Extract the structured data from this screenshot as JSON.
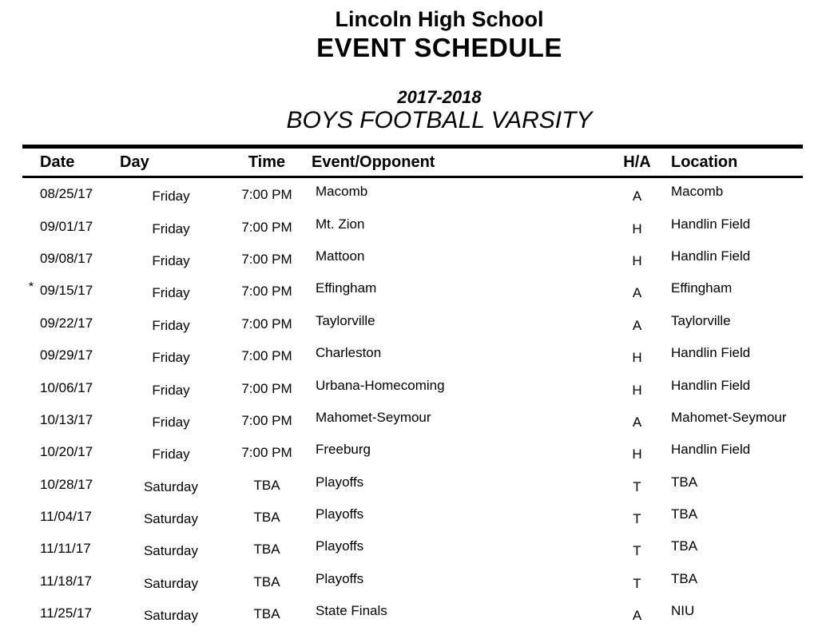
{
  "header": {
    "school": "Lincoln High School",
    "title": "EVENT SCHEDULE",
    "season": "2017-2018",
    "team": "BOYS FOOTBALL VARSITY"
  },
  "table": {
    "columns": {
      "date": "Date",
      "day": "Day",
      "time": "Time",
      "event": "Event/Opponent",
      "ha": "H/A",
      "location": "Location"
    },
    "rows": [
      {
        "flag": "",
        "date": "08/25/17",
        "day": "Friday",
        "time": "7:00 PM",
        "event": "Macomb",
        "ha": "A",
        "location": "Macomb"
      },
      {
        "flag": "",
        "date": "09/01/17",
        "day": "Friday",
        "time": "7:00 PM",
        "event": "Mt. Zion",
        "ha": "H",
        "location": "Handlin Field"
      },
      {
        "flag": "",
        "date": "09/08/17",
        "day": "Friday",
        "time": "7:00 PM",
        "event": "Mattoon",
        "ha": "H",
        "location": "Handlin Field"
      },
      {
        "flag": "*",
        "date": "09/15/17",
        "day": "Friday",
        "time": "7:00 PM",
        "event": "Effingham",
        "ha": "A",
        "location": "Effingham"
      },
      {
        "flag": "",
        "date": "09/22/17",
        "day": "Friday",
        "time": "7:00 PM",
        "event": "Taylorville",
        "ha": "A",
        "location": "Taylorville"
      },
      {
        "flag": "",
        "date": "09/29/17",
        "day": "Friday",
        "time": "7:00 PM",
        "event": "Charleston",
        "ha": "H",
        "location": "Handlin Field"
      },
      {
        "flag": "",
        "date": "10/06/17",
        "day": "Friday",
        "time": "7:00 PM",
        "event": "Urbana-Homecoming",
        "ha": "H",
        "location": "Handlin Field"
      },
      {
        "flag": "",
        "date": "10/13/17",
        "day": "Friday",
        "time": "7:00 PM",
        "event": "Mahomet-Seymour",
        "ha": "A",
        "location": "Mahomet-Seymour"
      },
      {
        "flag": "",
        "date": "10/20/17",
        "day": "Friday",
        "time": "7:00 PM",
        "event": "Freeburg",
        "ha": "H",
        "location": "Handlin Field"
      },
      {
        "flag": "",
        "date": "10/28/17",
        "day": "Saturday",
        "time": "TBA",
        "event": "Playoffs",
        "ha": "T",
        "location": "TBA"
      },
      {
        "flag": "",
        "date": "11/04/17",
        "day": "Saturday",
        "time": "TBA",
        "event": "Playoffs",
        "ha": "T",
        "location": "TBA"
      },
      {
        "flag": "",
        "date": "11/11/17",
        "day": "Saturday",
        "time": "TBA",
        "event": "Playoffs",
        "ha": "T",
        "location": "TBA"
      },
      {
        "flag": "",
        "date": "11/18/17",
        "day": "Saturday",
        "time": "TBA",
        "event": "Playoffs",
        "ha": "T",
        "location": "TBA"
      },
      {
        "flag": "",
        "date": "11/25/17",
        "day": "Saturday",
        "time": "TBA",
        "event": "State Finals",
        "ha": "A",
        "location": "NIU"
      }
    ]
  },
  "colors": {
    "text": "#000000",
    "background": "#ffffff",
    "rule": "#000000"
  }
}
